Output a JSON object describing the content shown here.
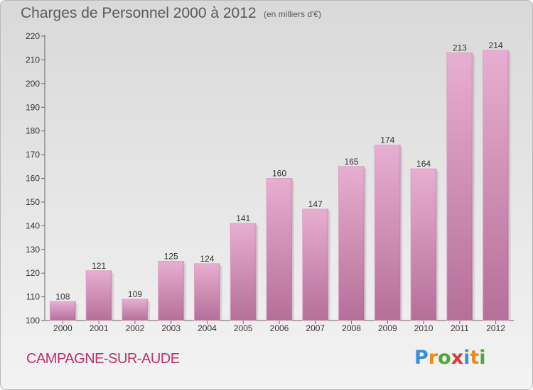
{
  "title": "Charges de Personnel 2000 à 2012",
  "subtitle": "(en milliers d'€)",
  "commune": "CAMPAGNE-SUR-AUDE",
  "logo": {
    "letters": [
      "P",
      "r",
      "o",
      "x",
      "i",
      "t",
      "i"
    ],
    "colors": [
      "#3a8fd8",
      "#f08a1c",
      "#4caa3c",
      "#d43c3c",
      "#3a8fd8",
      "#f08a1c",
      "#4caa3c"
    ]
  },
  "colors": {
    "bar_top": "#e8aed2",
    "bar_bottom": "#b56f98",
    "title_text": "#5a5a5a",
    "commune_text": "#c0306a"
  },
  "chart_data": {
    "type": "bar",
    "categories": [
      "2000",
      "2001",
      "2002",
      "2003",
      "2004",
      "2005",
      "2006",
      "2007",
      "2008",
      "2009",
      "2010",
      "2011",
      "2012"
    ],
    "values": [
      108,
      121,
      109,
      125,
      124,
      141,
      160,
      147,
      165,
      174,
      164,
      213,
      214
    ],
    "ylim": [
      100,
      220
    ],
    "yticks": [
      100,
      110,
      120,
      130,
      140,
      150,
      160,
      170,
      180,
      190,
      200,
      210,
      220
    ],
    "grid": false,
    "legend": "none"
  }
}
